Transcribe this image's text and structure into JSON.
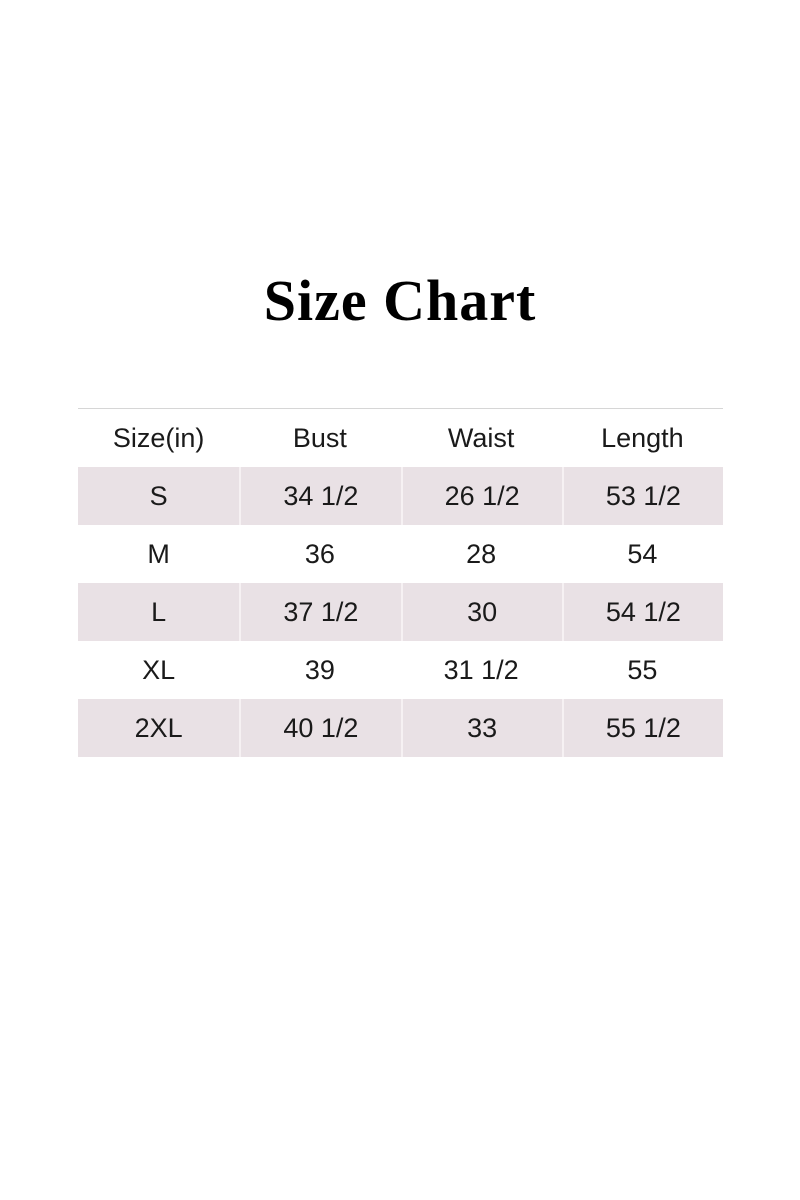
{
  "page": {
    "title": "Size Chart",
    "background": "#ffffff"
  },
  "size_chart": {
    "columns": [
      "Size(in)",
      "Bust",
      "Waist",
      "Length"
    ],
    "rows": [
      [
        "S",
        "34 1/2",
        "26 1/2",
        "53 1/2"
      ],
      [
        "M",
        "36",
        "28",
        "54"
      ],
      [
        "L",
        "37 1/2",
        "30",
        "54 1/2"
      ],
      [
        "XL",
        "39",
        "31 1/2",
        "55"
      ],
      [
        "2XL",
        "40 1/2",
        "33",
        "55 1/2"
      ]
    ],
    "colors": {
      "row_shade": "#e9e1e5",
      "divider": "#f6f1f3",
      "top_rule": "#d6d6d6",
      "text": "#1a1a1a"
    }
  },
  "chart_data": {
    "type": "table",
    "title": "Size Chart",
    "unit": "inches",
    "columns": [
      "Size(in)",
      "Bust",
      "Waist",
      "Length"
    ],
    "rows": [
      {
        "size": "S",
        "bust": 34.5,
        "waist": 26.5,
        "length": 53.5
      },
      {
        "size": "M",
        "bust": 36,
        "waist": 28,
        "length": 54
      },
      {
        "size": "L",
        "bust": 37.5,
        "waist": 30,
        "length": 54.5
      },
      {
        "size": "XL",
        "bust": 39,
        "waist": 31.5,
        "length": 55
      },
      {
        "size": "2XL",
        "bust": 40.5,
        "waist": 33,
        "length": 55.5
      }
    ]
  }
}
